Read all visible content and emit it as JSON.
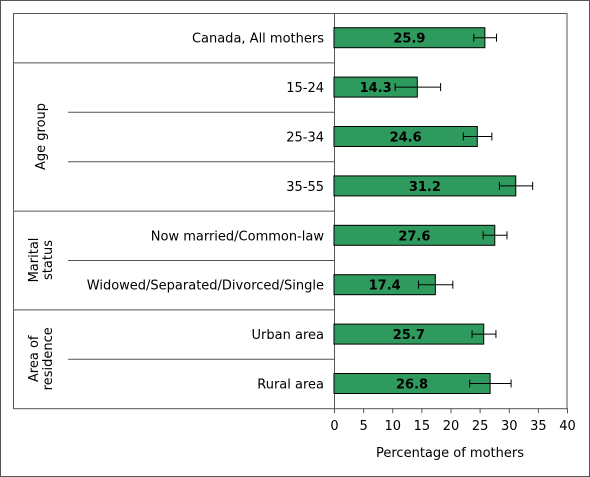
{
  "chart_data": {
    "type": "bar",
    "orientation": "horizontal",
    "bar_color": "#2e9a5e",
    "xlabel": "Percentage of mothers",
    "xlim": [
      0,
      40
    ],
    "xticks": [
      "0",
      "5",
      "10",
      "15",
      "20",
      "25",
      "30",
      "35",
      "40"
    ],
    "categories": [
      "Canada, All mothers",
      "15-24",
      "25-34",
      "35-55",
      "Now married/Common-law",
      "Widowed/Separated/Divorced/Single",
      "Urban area",
      "Rural area"
    ],
    "values": [
      25.9,
      14.3,
      24.6,
      31.2,
      27.6,
      17.4,
      25.7,
      26.8
    ],
    "value_labels": [
      "25.9",
      "14.3",
      "24.6",
      "31.2",
      "27.6",
      "17.4",
      "25.7",
      "26.8"
    ],
    "error_low": [
      24.0,
      10.5,
      22.2,
      28.4,
      25.6,
      14.5,
      23.7,
      23.3
    ],
    "error_high": [
      27.9,
      18.3,
      27.1,
      34.1,
      29.7,
      20.4,
      27.8,
      30.4
    ],
    "groups": [
      {
        "label": "Age group",
        "start": 1,
        "end": 3
      },
      {
        "label": "Marital status",
        "lines": [
          "Marital",
          "status"
        ],
        "start": 4,
        "end": 5
      },
      {
        "label": "Area of residence",
        "lines": [
          "Area of",
          "residence"
        ],
        "start": 6,
        "end": 7
      }
    ]
  }
}
